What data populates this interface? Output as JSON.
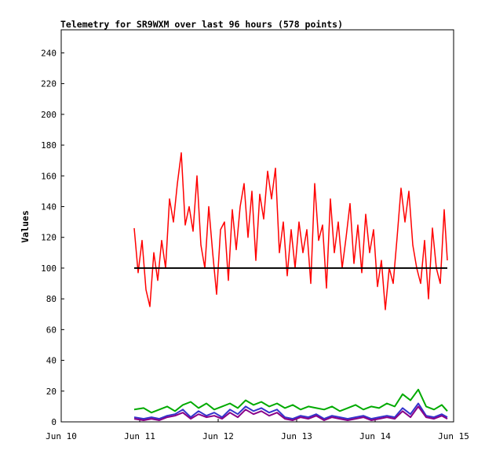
{
  "chart_data": {
    "type": "line",
    "title": "Telemetry for SR9WXM over last 96 hours (578 points)",
    "ylabel": "Values",
    "xlabel": "",
    "ylim": [
      0,
      255
    ],
    "y_ticks": [
      0,
      20,
      40,
      60,
      80,
      100,
      120,
      140,
      160,
      180,
      200,
      220,
      240
    ],
    "x_ticks": [
      "Jun 10",
      "Jun 11",
      "Jun 12",
      "Jun 13",
      "Jun 14",
      "Jun 15"
    ],
    "xlim": [
      0,
      5
    ],
    "grid": false,
    "legend": "none",
    "reference_line": {
      "value": 100,
      "color": "#000000"
    },
    "series": [
      {
        "color": "#ff0000",
        "x": [
          0.93,
          0.98,
          1.03,
          1.08,
          1.13,
          1.18,
          1.23,
          1.28,
          1.33,
          1.38,
          1.43,
          1.48,
          1.53,
          1.58,
          1.63,
          1.68,
          1.73,
          1.78,
          1.83,
          1.88,
          1.93,
          1.98,
          2.03,
          2.08,
          2.13,
          2.18,
          2.23,
          2.28,
          2.33,
          2.38,
          2.43,
          2.48,
          2.53,
          2.58,
          2.63,
          2.68,
          2.73,
          2.78,
          2.83,
          2.88,
          2.93,
          2.98,
          3.03,
          3.08,
          3.13,
          3.18,
          3.23,
          3.28,
          3.33,
          3.38,
          3.43,
          3.48,
          3.53,
          3.58,
          3.63,
          3.68,
          3.73,
          3.78,
          3.83,
          3.88,
          3.93,
          3.98,
          4.03,
          4.08,
          4.13,
          4.18,
          4.23,
          4.28,
          4.33,
          4.38,
          4.43,
          4.48,
          4.53,
          4.58,
          4.63,
          4.68,
          4.73,
          4.78,
          4.83,
          4.88,
          4.92
        ],
        "values": [
          126,
          97,
          118,
          86,
          75,
          110,
          92,
          118,
          100,
          145,
          130,
          155,
          175,
          128,
          140,
          124,
          160,
          115,
          100,
          140,
          110,
          83,
          125,
          130,
          92,
          138,
          112,
          140,
          155,
          120,
          150,
          105,
          148,
          132,
          163,
          145,
          165,
          110,
          130,
          95,
          125,
          100,
          130,
          110,
          125,
          90,
          155,
          118,
          128,
          87,
          145,
          110,
          130,
          100,
          120,
          142,
          103,
          128,
          97,
          135,
          110,
          125,
          88,
          105,
          73,
          100,
          90,
          120,
          152,
          130,
          150,
          115,
          100,
          90,
          118,
          80,
          126,
          100,
          90,
          138,
          105
        ]
      },
      {
        "color": "#00aa00",
        "x": [
          0.93,
          1.05,
          1.15,
          1.25,
          1.35,
          1.45,
          1.55,
          1.65,
          1.75,
          1.85,
          1.95,
          2.05,
          2.15,
          2.25,
          2.35,
          2.45,
          2.55,
          2.65,
          2.75,
          2.85,
          2.95,
          3.05,
          3.15,
          3.25,
          3.35,
          3.45,
          3.55,
          3.65,
          3.75,
          3.85,
          3.95,
          4.05,
          4.15,
          4.25,
          4.35,
          4.45,
          4.55,
          4.65,
          4.75,
          4.85,
          4.92
        ],
        "values": [
          8,
          9,
          6,
          8,
          10,
          7,
          11,
          13,
          9,
          12,
          8,
          10,
          12,
          9,
          14,
          11,
          13,
          10,
          12,
          9,
          11,
          8,
          10,
          9,
          8,
          10,
          7,
          9,
          11,
          8,
          10,
          9,
          12,
          10,
          18,
          14,
          21,
          10,
          8,
          11,
          7
        ]
      },
      {
        "color": "#3333cc",
        "x": [
          0.93,
          1.05,
          1.15,
          1.25,
          1.35,
          1.45,
          1.55,
          1.65,
          1.75,
          1.85,
          1.95,
          2.05,
          2.15,
          2.25,
          2.35,
          2.45,
          2.55,
          2.65,
          2.75,
          2.85,
          2.95,
          3.05,
          3.15,
          3.25,
          3.35,
          3.45,
          3.55,
          3.65,
          3.75,
          3.85,
          3.95,
          4.05,
          4.15,
          4.25,
          4.35,
          4.45,
          4.55,
          4.65,
          4.75,
          4.85,
          4.92
        ],
        "values": [
          3,
          2,
          3,
          2,
          4,
          5,
          8,
          3,
          7,
          4,
          6,
          3,
          8,
          5,
          10,
          7,
          9,
          6,
          8,
          3,
          2,
          4,
          3,
          5,
          2,
          4,
          3,
          2,
          3,
          4,
          2,
          3,
          4,
          3,
          9,
          5,
          12,
          4,
          3,
          5,
          3
        ]
      },
      {
        "color": "#880088",
        "x": [
          0.93,
          1.05,
          1.15,
          1.25,
          1.35,
          1.45,
          1.55,
          1.65,
          1.75,
          1.85,
          1.95,
          2.05,
          2.15,
          2.25,
          2.35,
          2.45,
          2.55,
          2.65,
          2.75,
          2.85,
          2.95,
          3.05,
          3.15,
          3.25,
          3.35,
          3.45,
          3.55,
          3.65,
          3.75,
          3.85,
          3.95,
          4.05,
          4.15,
          4.25,
          4.35,
          4.45,
          4.55,
          4.65,
          4.75,
          4.85,
          4.92
        ],
        "values": [
          2,
          1,
          2,
          1,
          3,
          4,
          6,
          2,
          5,
          3,
          4,
          2,
          6,
          3,
          8,
          5,
          7,
          4,
          6,
          2,
          1,
          3,
          2,
          4,
          1,
          3,
          2,
          1,
          2,
          3,
          1,
          2,
          3,
          2,
          7,
          3,
          10,
          3,
          2,
          4,
          2
        ]
      }
    ]
  }
}
